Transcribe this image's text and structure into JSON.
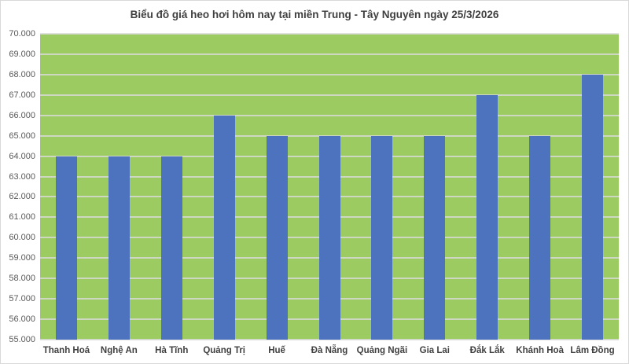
{
  "chart_data": {
    "type": "bar",
    "title": "Biểu đồ giá heo hơi hôm nay tại miền Trung - Tây Nguyên ngày 25/3/2026",
    "categories": [
      "Thanh Hoá",
      "Nghệ An",
      "Hà Tĩnh",
      "Quảng Trị",
      "Huế",
      "Đà Nẵng",
      "Quảng Ngãi",
      "Gia Lai",
      "Đắk Lắk",
      "Khánh Hoà",
      "Lâm Đồng"
    ],
    "values": [
      64000,
      64000,
      64000,
      66000,
      65000,
      65000,
      65000,
      65000,
      67000,
      65000,
      68000
    ],
    "xlabel": "",
    "ylabel": "",
    "ylim": [
      55000,
      70000
    ],
    "ytick_step": 1000,
    "ytick_labels": [
      "70.000",
      "69.000",
      "68.000",
      "67.000",
      "66.000",
      "65.000",
      "64.000",
      "63.000",
      "62.000",
      "61.000",
      "60.000",
      "59.000",
      "58.000",
      "57.000",
      "56.000",
      "55.000"
    ],
    "grid": true,
    "legend": "none",
    "colors": {
      "bar": "#4E73BE",
      "plot_background": "#9CCB62",
      "gridline": "#D9D9D9",
      "y_axis_label": "#595959",
      "x_axis_label": "#404040",
      "title": "#3F3F3F",
      "page_background": "#FFFFFF",
      "border": "#D9D9D9"
    }
  }
}
